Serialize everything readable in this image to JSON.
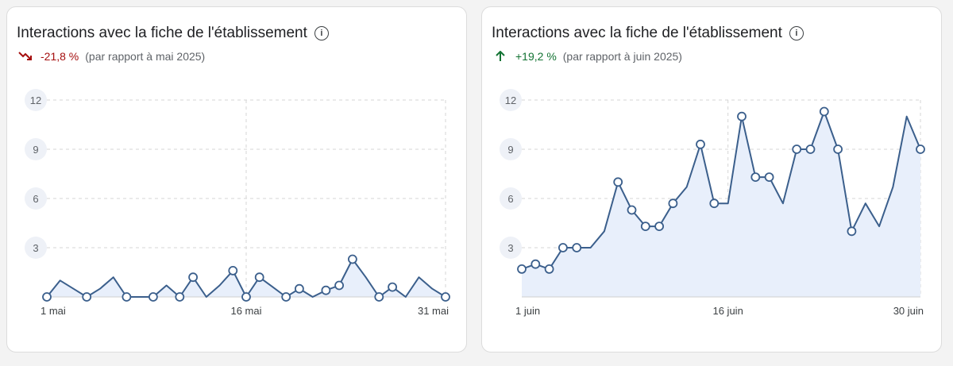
{
  "chart_data": [
    {
      "type": "area",
      "title": "Interactions avec la fiche de l'établissement",
      "change": {
        "direction": "down",
        "value": "-21,8 %",
        "comparison": "(par rapport à mai 2025)"
      },
      "y_ticks": [
        "12",
        "9",
        "6",
        "3"
      ],
      "ylim": [
        0,
        12
      ],
      "x_ticks": [
        {
          "day": 1,
          "label": "1 mai"
        },
        {
          "day": 16,
          "label": "16 mai"
        },
        {
          "day": 31,
          "label": "31 mai"
        }
      ],
      "x": [
        1,
        2,
        3,
        4,
        5,
        6,
        7,
        8,
        9,
        10,
        11,
        12,
        13,
        14,
        15,
        16,
        17,
        18,
        19,
        20,
        21,
        22,
        23,
        24,
        25,
        26,
        27,
        28,
        29,
        30,
        31
      ],
      "values": [
        0,
        1,
        0.5,
        0,
        0.5,
        1.2,
        0,
        0,
        0,
        0.7,
        0,
        1.2,
        0,
        0.7,
        1.6,
        0,
        1.2,
        0.6,
        0,
        0.5,
        0,
        0.4,
        0.7,
        2.3,
        1.2,
        0,
        0.6,
        0,
        1.2,
        0.5,
        0
      ],
      "markers": [
        1,
        4,
        7,
        9,
        11,
        12,
        15,
        16,
        17,
        19,
        20,
        22,
        23,
        24,
        26,
        27
      ],
      "grid": true,
      "color": "#3b5f8c",
      "fill": "#e8effb"
    },
    {
      "type": "area",
      "title": "Interactions avec la fiche de l'établissement",
      "change": {
        "direction": "up",
        "value": "+19,2 %",
        "comparison": "(par rapport à juin 2025)"
      },
      "y_ticks": [
        "12",
        "9",
        "6",
        "3"
      ],
      "ylim": [
        0,
        12
      ],
      "x_ticks": [
        {
          "day": 1,
          "label": "1 juin"
        },
        {
          "day": 16,
          "label": "16 juin"
        },
        {
          "day": 30,
          "label": "30 juin"
        }
      ],
      "x": [
        1,
        2,
        3,
        4,
        5,
        6,
        7,
        8,
        9,
        10,
        11,
        12,
        13,
        14,
        15,
        16,
        17,
        18,
        19,
        20,
        21,
        22,
        23,
        24,
        25,
        26,
        27,
        28,
        29,
        30
      ],
      "values": [
        1.7,
        2,
        1.7,
        3,
        3,
        3,
        4,
        7,
        5.3,
        4.3,
        4.3,
        5.7,
        6.7,
        9.3,
        5.7,
        5.7,
        11,
        7.3,
        7.3,
        5.7,
        9,
        9,
        11.3,
        9,
        4,
        5.7,
        4.3,
        6.7,
        11,
        9
      ],
      "markers": [
        1,
        2,
        3,
        4,
        5,
        8,
        9,
        10,
        11,
        12,
        14,
        15,
        17,
        18,
        19,
        21,
        22,
        23,
        24,
        25
      ],
      "grid": true,
      "color": "#3b5f8c",
      "fill": "#e8effb"
    }
  ]
}
